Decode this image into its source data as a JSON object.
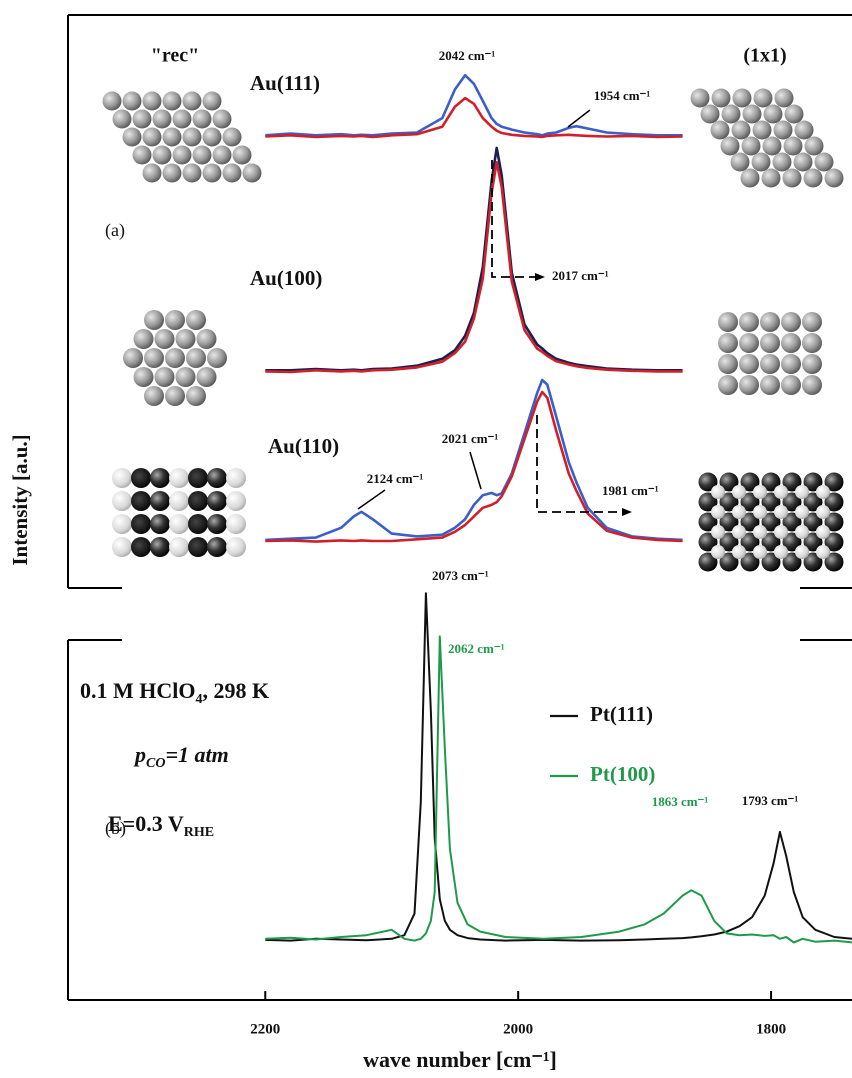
{
  "chart_data": [
    {
      "type": "line",
      "panel_label": "(a)",
      "ylabel": "Intensity [a.u.]",
      "left_label": "\"rec\"",
      "right_label": "(1x1)",
      "xlim": [
        2356,
        1736
      ],
      "ylim": [
        0,
        100
      ],
      "x": [
        2200,
        2180,
        2160,
        2140,
        2130,
        2124,
        2115,
        2100,
        2080,
        2060,
        2050,
        2042,
        2035,
        2028,
        2021,
        2017,
        2013,
        2005,
        1995,
        1985,
        1981,
        1977,
        1970,
        1960,
        1954,
        1945,
        1930,
        1910,
        1890,
        1870
      ],
      "groups": [
        {
          "label": "Au(111)",
          "series": [
            {
              "color": "#3a5fc8",
              "values": [
                79,
                79.3,
                79,
                79.2,
                79,
                79.1,
                79,
                79.3,
                79.5,
                82,
                87,
                89.5,
                88,
                85,
                82,
                81,
                80.5,
                80,
                79.5,
                79.2,
                79,
                79.3,
                79.5,
                80.3,
                80.6,
                80.2,
                79.5,
                79.2,
                79,
                79
              ]
            },
            {
              "color": "#d0202a",
              "values": [
                78.8,
                79,
                78.7,
                78.9,
                78.8,
                78.9,
                78.7,
                79,
                79.2,
                80.5,
                84,
                85.5,
                84.5,
                82,
                80.5,
                79.8,
                79.4,
                79.1,
                78.9,
                78.8,
                78.7,
                78.9,
                79,
                79.1,
                79,
                78.9,
                78.8,
                78.9,
                78.7,
                78.8
              ]
            }
          ]
        },
        {
          "label": "Au(100)",
          "series": [
            {
              "color": "#1a2050",
              "values": [
                38,
                38,
                38.2,
                38,
                38.1,
                38,
                38.2,
                38.3,
                38.8,
                40,
                41.5,
                44,
                48,
                56,
                71,
                76.8,
                72,
                55,
                46,
                42.5,
                41.8,
                41,
                40,
                39.3,
                39,
                38.7,
                38.3,
                38.1,
                38,
                38
              ]
            },
            {
              "color": "#d0202a",
              "values": [
                37.8,
                37.7,
                38,
                37.8,
                37.9,
                37.8,
                38,
                38.1,
                38.5,
                39.5,
                41,
                43,
                47,
                54,
                69,
                74.3,
                70,
                53.5,
                45,
                41.8,
                41.2,
                40.5,
                39.6,
                39,
                38.7,
                38.4,
                38.1,
                37.9,
                37.8,
                37.8
              ]
            }
          ]
        },
        {
          "label": "Au(110)",
          "series": [
            {
              "color": "#3a5fc8",
              "values": [
                8.4,
                8.6,
                8.8,
                10.5,
                12.5,
                13.3,
                12,
                9.5,
                9,
                9.3,
                10.5,
                12,
                14.5,
                16.2,
                16.6,
                16.2,
                16.5,
                20,
                27,
                34,
                36.3,
                35.5,
                30,
                22,
                18.5,
                14,
                10.5,
                9,
                8.6,
                8.4
              ]
            },
            {
              "color": "#d0202a",
              "values": [
                8.2,
                8.3,
                8.1,
                8.3,
                8.2,
                8.3,
                8.2,
                8.2,
                8.5,
                8.8,
                9.8,
                11,
                12.5,
                14,
                14.5,
                15,
                16,
                19.5,
                26,
                32.5,
                34.2,
                33.2,
                27.5,
                20,
                17,
                13,
                10,
                8.8,
                8.4,
                8.2
              ]
            }
          ]
        }
      ],
      "annotations": [
        {
          "text": "2042 cm⁻¹",
          "color": "#111"
        },
        {
          "text": "1954 cm⁻¹",
          "color": "#111"
        },
        {
          "text": "2017 cm⁻¹",
          "color": "#111"
        },
        {
          "text": "2124 cm⁻¹",
          "color": "#111"
        },
        {
          "text": "2021 cm⁻¹",
          "color": "#111"
        },
        {
          "text": "1981 cm⁻¹",
          "color": "#111"
        }
      ]
    },
    {
      "type": "line",
      "panel_label": "(b)",
      "xlabel": "wave number [cm⁻¹]",
      "xlim": [
        2356,
        1736
      ],
      "ylim": [
        0,
        100
      ],
      "xticks": [
        2200,
        2000,
        1800
      ],
      "x": [
        2200,
        2180,
        2160,
        2140,
        2120,
        2100,
        2090,
        2082,
        2077,
        2073,
        2069,
        2066,
        2062,
        2058,
        2054,
        2048,
        2040,
        2030,
        2010,
        1980,
        1950,
        1920,
        1900,
        1885,
        1870,
        1863,
        1855,
        1845,
        1835,
        1825,
        1815,
        1805,
        1798,
        1793,
        1788,
        1782,
        1775,
        1765,
        1750,
        1736
      ],
      "series": [
        {
          "name": "Pt(111)",
          "color": "#111111",
          "values": [
            16.7,
            16.5,
            17,
            16.8,
            16.6,
            17,
            18,
            24,
            55,
            113,
            80,
            45,
            28,
            22,
            19.5,
            18,
            17.2,
            16.8,
            16.5,
            16.7,
            16.5,
            16.6,
            16.8,
            17,
            17.2,
            17.4,
            17.7,
            18.2,
            19,
            20.5,
            23,
            29,
            38,
            46.7,
            40,
            30,
            23,
            19.5,
            17.5,
            17
          ]
        },
        {
          "name": "Pt(100)",
          "color": "#1f9a4a",
          "values": [
            17,
            17.3,
            16.8,
            17.5,
            18,
            19.5,
            17,
            16.5,
            17,
            18.5,
            22,
            30,
            101,
            70,
            42,
            27,
            21,
            19,
            17.5,
            17,
            17.5,
            19,
            21,
            24,
            29,
            30.5,
            29,
            22,
            18.5,
            18,
            18.2,
            17.8,
            18,
            17,
            17.5,
            16,
            17,
            16.2,
            16.5,
            16
          ]
        }
      ],
      "conditions": [
        [
          "0.1 M HClO",
          "4",
          ", 298 K"
        ],
        [
          "p",
          "CO",
          "=1 atm"
        ],
        [
          "E=0.3 V",
          "RHE"
        ]
      ],
      "annotations": [
        {
          "text": "2073 cm⁻¹",
          "color": "#111"
        },
        {
          "text": "2062 cm⁻¹",
          "color": "#1f9a4a"
        },
        {
          "text": "1863 cm⁻¹",
          "color": "#1f9a4a"
        },
        {
          "text": "1793 cm⁻¹",
          "color": "#111"
        }
      ]
    }
  ]
}
